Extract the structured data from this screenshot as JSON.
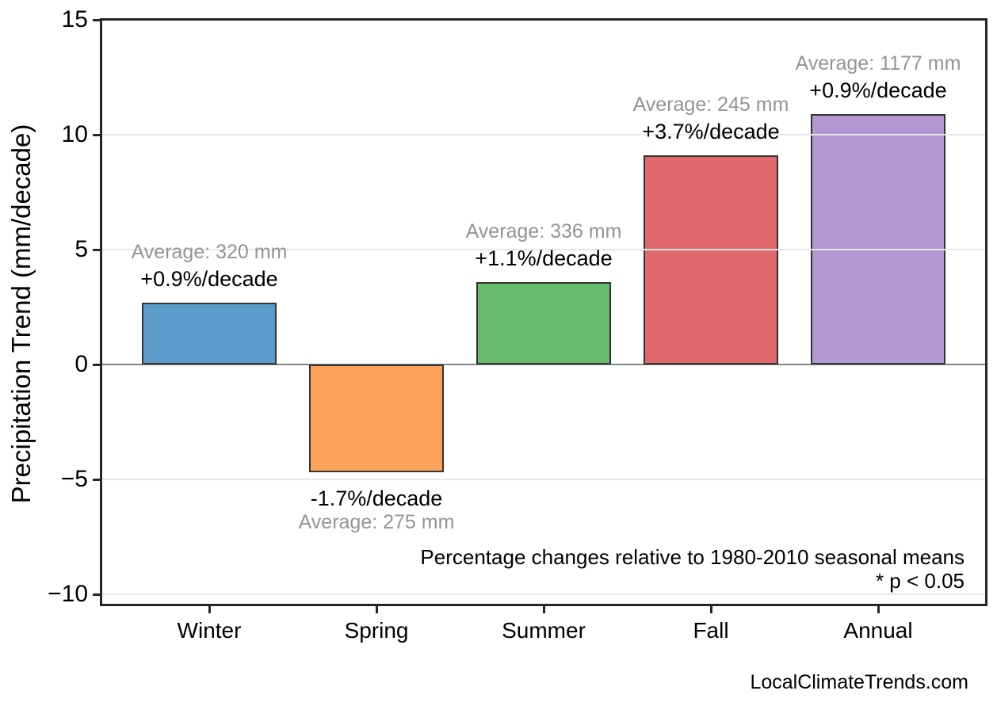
{
  "chart_data": {
    "type": "bar",
    "title": "",
    "ylabel": "Precipitation Trend (mm/decade)",
    "xlabel": "",
    "ylim": [
      -10.5,
      15
    ],
    "ytick_values": [
      15,
      10,
      5,
      0,
      -5,
      -10
    ],
    "ytick_labels": [
      "15",
      "10",
      "5",
      "0",
      "−5",
      "−10"
    ],
    "grid": "horizontal light-gray gridlines drawn over bars; gray zero line",
    "legend": "none",
    "categories": [
      "Winter",
      "Spring",
      "Summer",
      "Fall",
      "Annual"
    ],
    "values_mm_per_decade": [
      2.7,
      -4.7,
      3.6,
      9.1,
      10.9
    ],
    "averages_mm": [
      320,
      275,
      336,
      245,
      1177
    ],
    "pct_per_decade": [
      0.9,
      -1.7,
      1.1,
      3.7,
      0.9
    ],
    "bars": [
      {
        "category": "Winter",
        "value": 2.7,
        "avg_label": "Average: 320 mm",
        "pct_label": "+0.9%/decade",
        "color": "#5C9DCB"
      },
      {
        "category": "Spring",
        "value": -4.7,
        "avg_label": "Average: 275 mm",
        "pct_label": "-1.7%/decade",
        "color": "#FCA35B"
      },
      {
        "category": "Summer",
        "value": 3.6,
        "avg_label": "Average: 336 mm",
        "pct_label": "+1.1%/decade",
        "color": "#66BC6A"
      },
      {
        "category": "Fall",
        "value": 9.1,
        "avg_label": "Average: 245 mm",
        "pct_label": "+3.7%/decade",
        "color": "#E0676C"
      },
      {
        "category": "Annual",
        "value": 10.9,
        "avg_label": "Average: 1177 mm",
        "pct_label": "+0.9%/decade",
        "color": "#B297D3"
      }
    ],
    "annotations": [
      "Percentage changes relative to 1980-2010 seasonal means",
      "* p < 0.05"
    ],
    "colors": {
      "bar_edge": "#333333",
      "spine": "#262626",
      "gridline": "#e7e7e7",
      "zero_line": "#858585",
      "avg_label_text": "#949494",
      "pct_label_text": "#000000"
    }
  },
  "footer": {
    "watermark": "LocalClimateTrends.com"
  }
}
